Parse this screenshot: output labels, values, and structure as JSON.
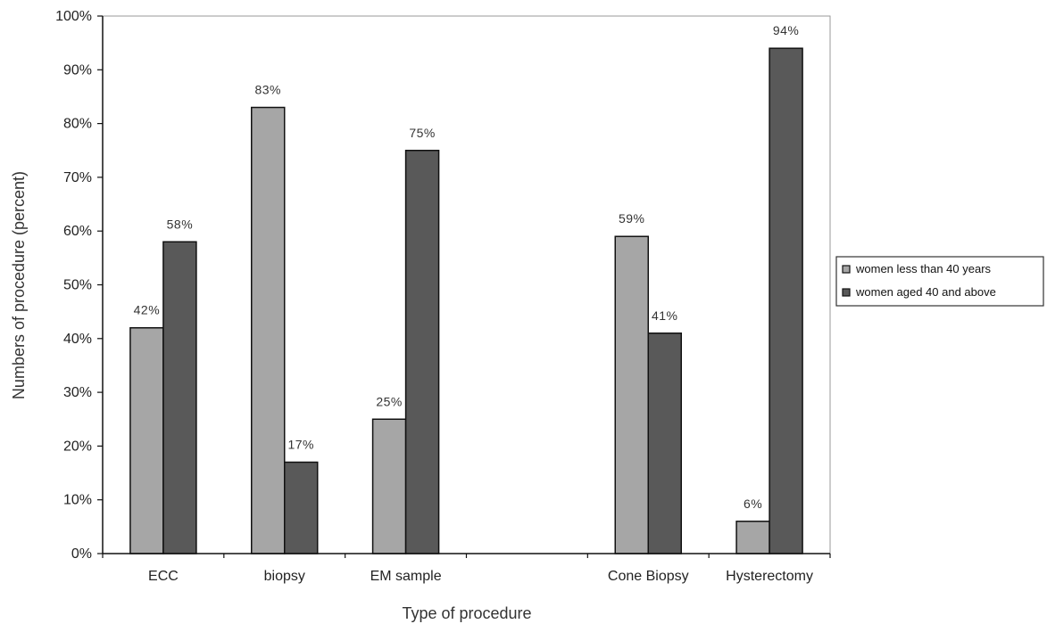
{
  "chart_data": {
    "type": "bar",
    "categories": [
      "ECC",
      "biopsy",
      "EM sample",
      "",
      "Cone Biopsy",
      "Hysterectomy"
    ],
    "series": [
      {
        "name": "women less than 40 years",
        "color": "#a6a6a6",
        "values": [
          42,
          83,
          25,
          null,
          59,
          6
        ],
        "labels": [
          "42%",
          "83%",
          "25%",
          "",
          "59%",
          "6%"
        ]
      },
      {
        "name": "women aged 40 and above",
        "color": "#595959",
        "values": [
          58,
          17,
          75,
          null,
          41,
          94
        ],
        "labels": [
          "58%",
          "17%",
          "75%",
          "",
          "41%",
          "94%"
        ]
      }
    ],
    "title": "",
    "xlabel": "Type of procedure",
    "ylabel": "Numbers of procedure (percent)",
    "ylim": [
      0,
      100
    ],
    "yticks": [
      "0%",
      "10%",
      "20%",
      "30%",
      "40%",
      "50%",
      "60%",
      "70%",
      "80%",
      "90%",
      "100%"
    ],
    "grid": false,
    "legend_position": "right"
  }
}
